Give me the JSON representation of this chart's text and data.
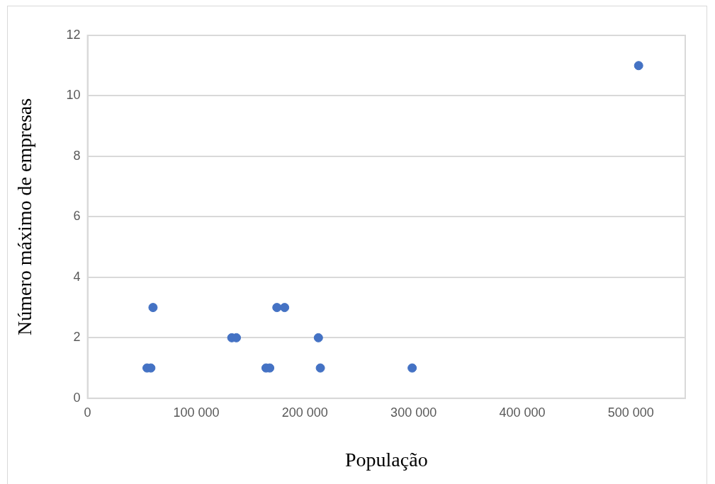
{
  "chart_data": {
    "type": "scatter",
    "xlabel": "População",
    "ylabel": "Número máximo de empresas",
    "x": [
      54700,
      58200,
      60200,
      132700,
      136900,
      164200,
      167600,
      174200,
      181300,
      212400,
      214200,
      298700,
      507100
    ],
    "values": [
      1,
      1,
      3,
      2,
      2,
      1,
      1,
      3,
      3,
      2,
      1,
      1,
      11
    ],
    "color": "#4472c4",
    "marker": "circle",
    "xlim": [
      0,
      550000
    ],
    "xticks": [
      {
        "value": 0,
        "label": "0"
      },
      {
        "value": 100000,
        "label": "100 000"
      },
      {
        "value": 200000,
        "label": "200 000"
      },
      {
        "value": 300000,
        "label": "300 000"
      },
      {
        "value": 400000,
        "label": "400 000"
      },
      {
        "value": 500000,
        "label": "500 000"
      }
    ],
    "ylim": [
      0,
      12
    ],
    "yticks": [
      0,
      2,
      4,
      6,
      8,
      10,
      12
    ],
    "grid": "y",
    "legend": false
  }
}
